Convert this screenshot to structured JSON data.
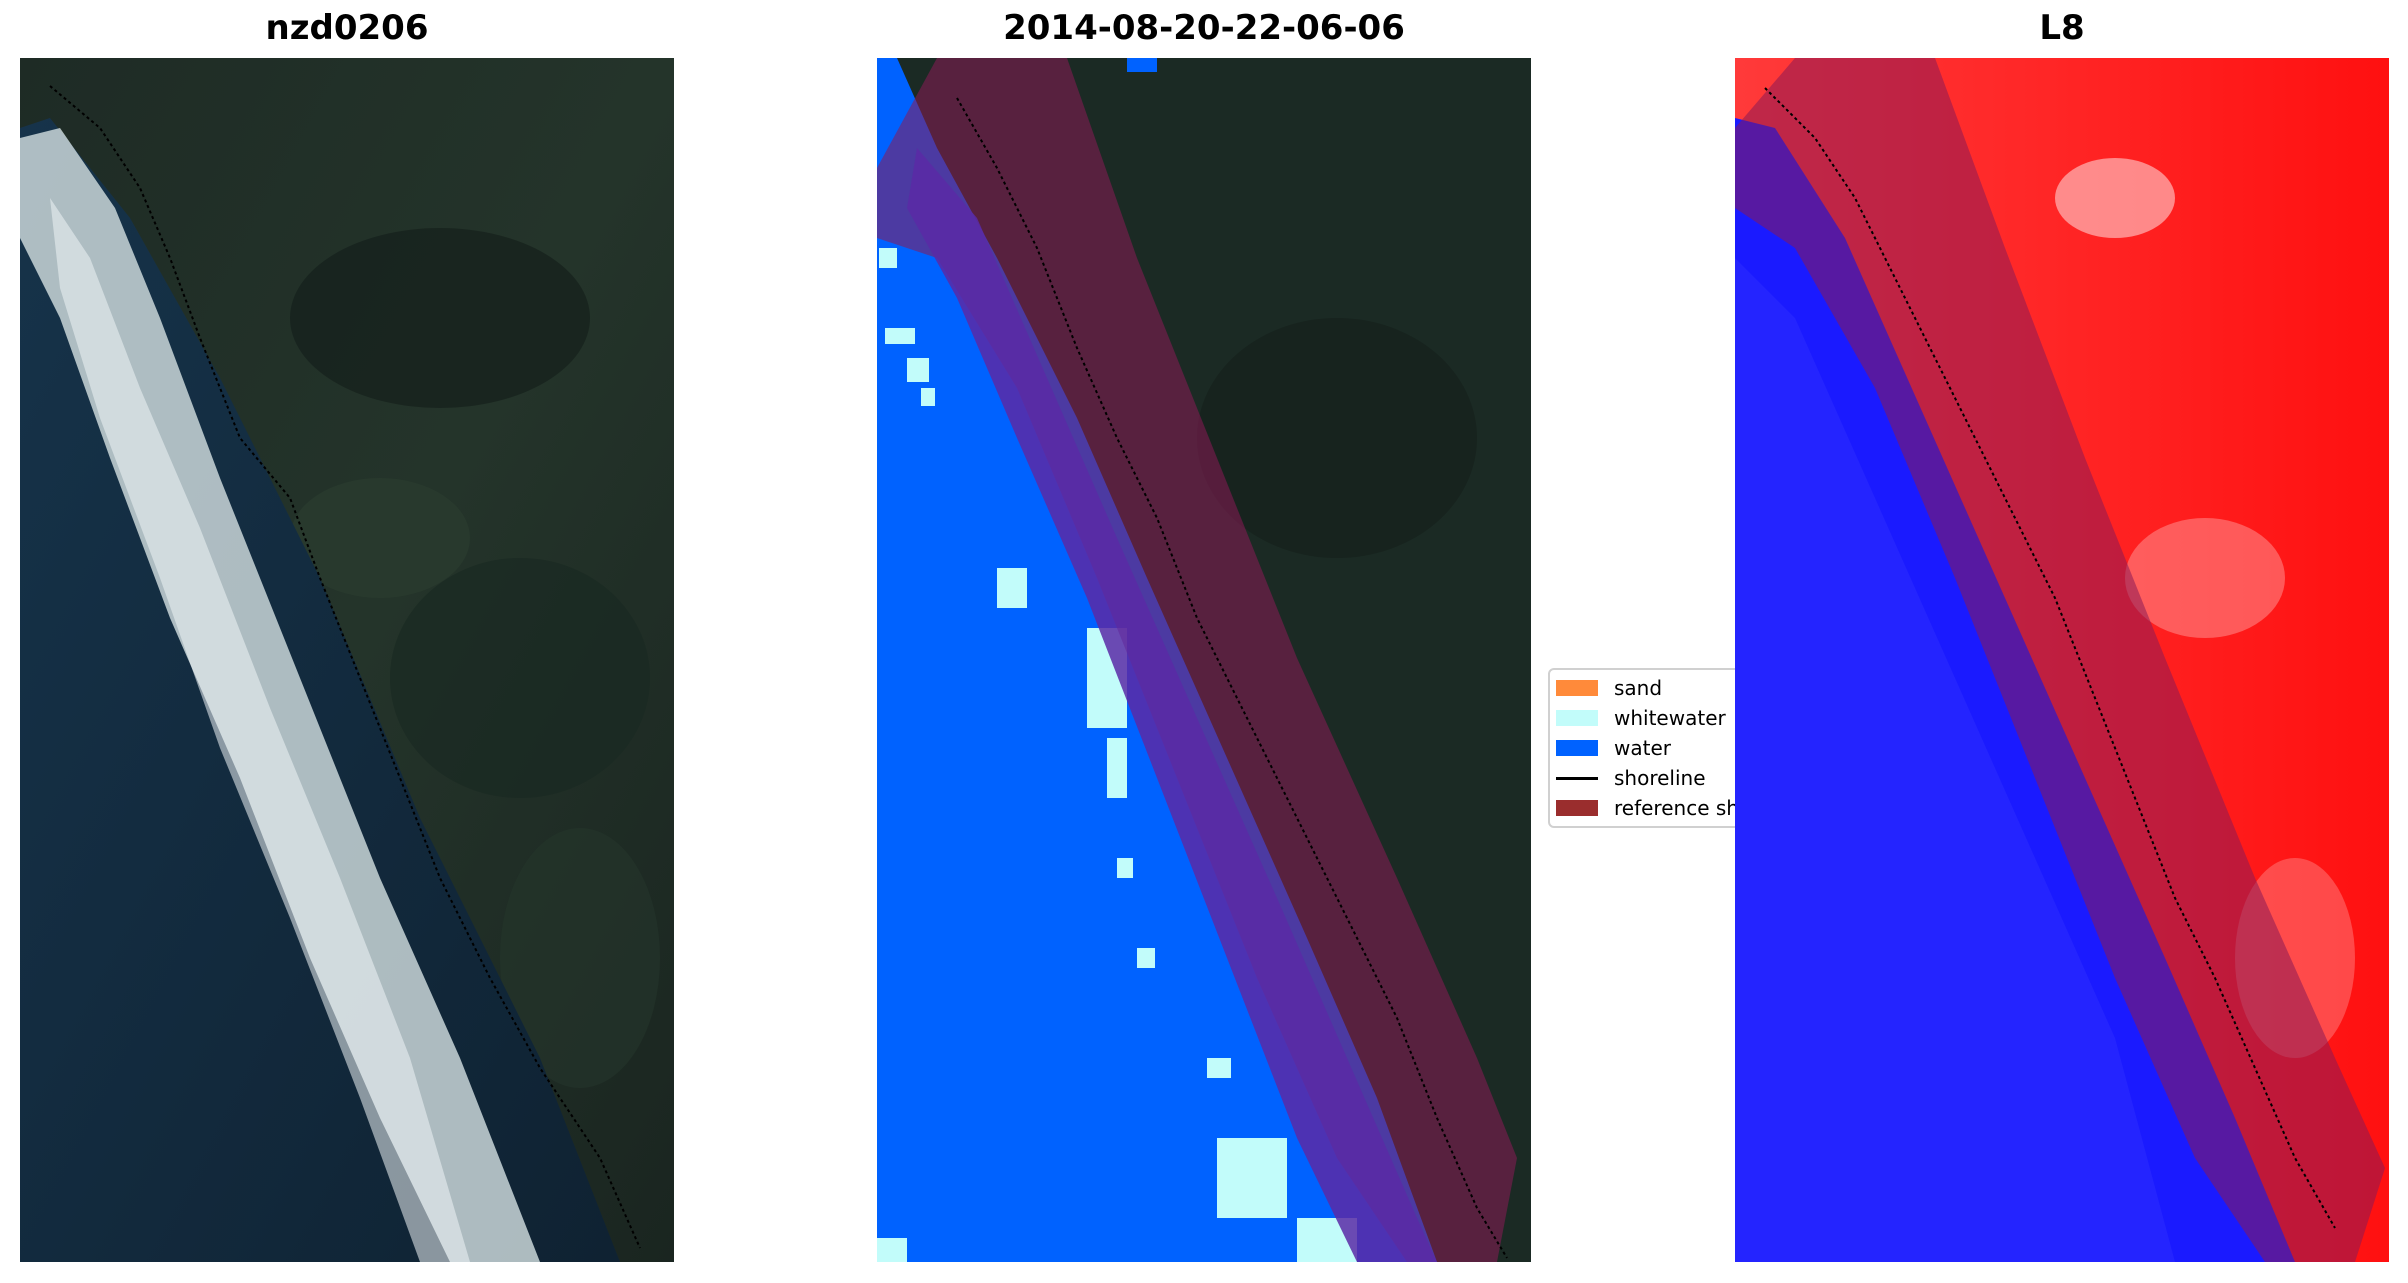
{
  "panels": [
    {
      "title": "nzd0206"
    },
    {
      "title": "2014-08-20-22-06-06"
    },
    {
      "title": "L8"
    }
  ],
  "legend": {
    "items": [
      {
        "label": "sand",
        "color": "#ff8a3a"
      },
      {
        "label": "whitewater",
        "color": "#c2fcfa"
      },
      {
        "label": "water",
        "color": "#0062ff"
      },
      {
        "label": "shoreline",
        "color": "#000000"
      },
      {
        "label": "reference shoreline",
        "color": "#9a2d2d"
      }
    ]
  },
  "colors": {
    "land": "#1b2a24",
    "ocean": "#12233a",
    "surf": "#d9e4e6",
    "water_class": "#0062ff",
    "whitewater_class": "#c2fcfa",
    "reference_buffer": "#8b1a55",
    "mndwi_land": "#ff1a1a",
    "mndwi_water": "#1a1aff"
  }
}
